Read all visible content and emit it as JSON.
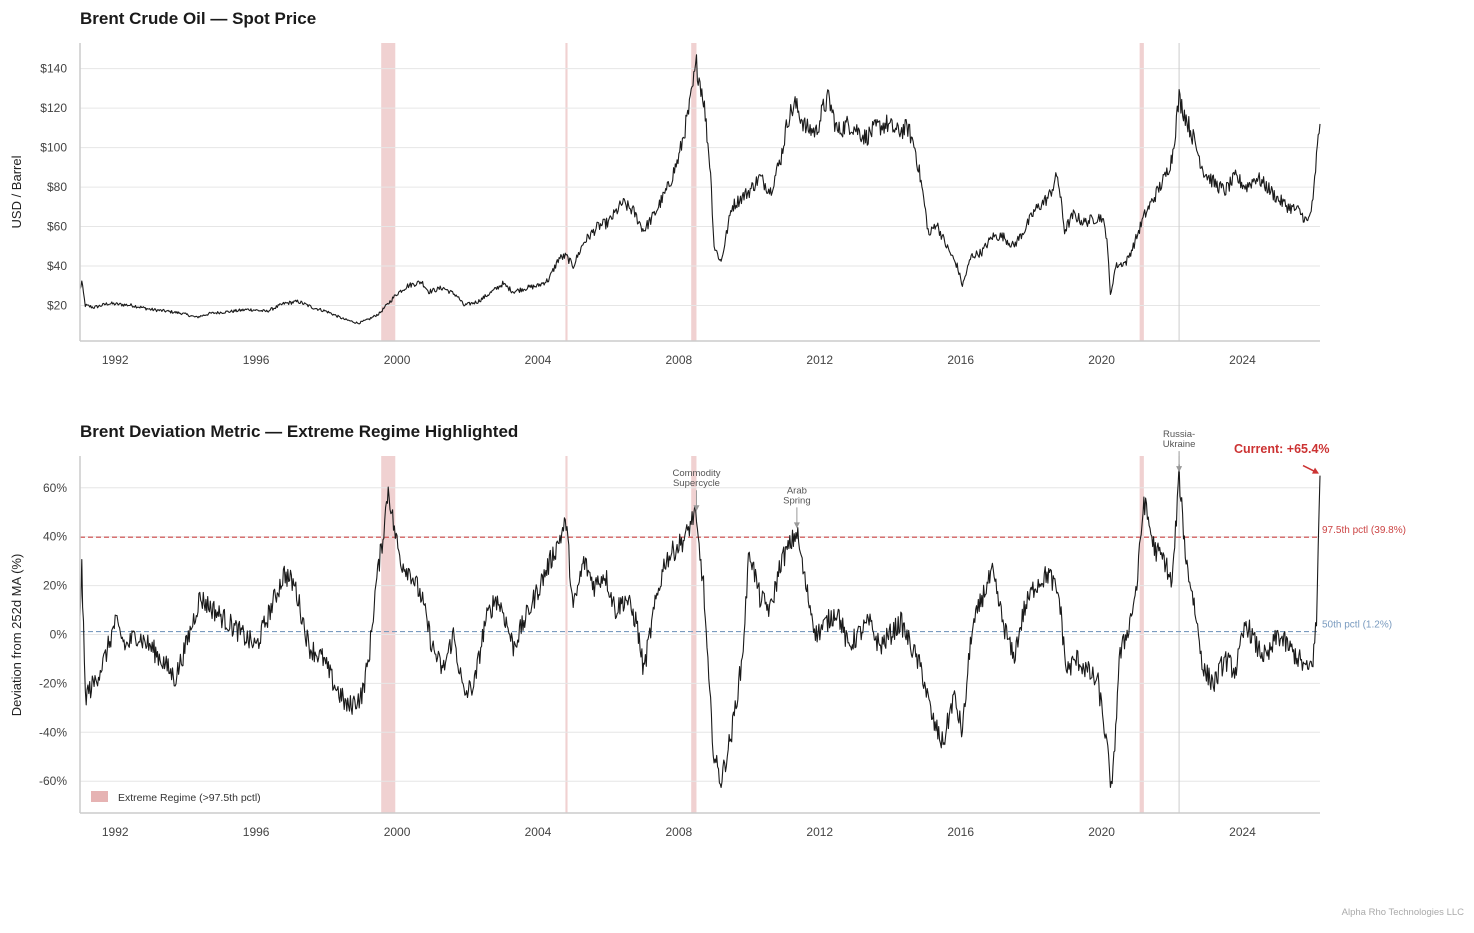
{
  "chart_data": [
    {
      "type": "line",
      "title": "Brent Crude Oil — Spot Price",
      "xlabel": "",
      "ylabel": "USD / Barrel",
      "xlim": [
        1991.0,
        2026.2
      ],
      "ylim": [
        2,
        153
      ],
      "x_ticks": [
        1992,
        1996,
        2000,
        2004,
        2008,
        2012,
        2016,
        2020,
        2024
      ],
      "y_ticks": [
        20,
        40,
        60,
        80,
        100,
        120,
        140
      ],
      "y_tick_labels": [
        "$20",
        "$40",
        "$60",
        "$80",
        "$100",
        "$120",
        "$140"
      ],
      "series": [
        {
          "name": "Brent Spot Price",
          "x": [
            1991.0,
            1991.05,
            1991.15,
            1991.4,
            1991.8,
            1992.5,
            1993.0,
            1993.5,
            1993.9,
            1994.3,
            1994.7,
            1995.3,
            1995.8,
            1996.3,
            1996.8,
            1997.2,
            1997.6,
            1998.0,
            1998.5,
            1998.9,
            1999.2,
            1999.5,
            1999.8,
            2000.0,
            2000.3,
            2000.7,
            2000.9,
            2001.3,
            2001.7,
            2001.9,
            2002.3,
            2002.7,
            2003.0,
            2003.3,
            2003.7,
            2004.0,
            2004.3,
            2004.6,
            2004.8,
            2005.0,
            2005.3,
            2005.7,
            2006.0,
            2006.4,
            2006.7,
            2007.0,
            2007.3,
            2007.7,
            2008.0,
            2008.3,
            2008.5,
            2008.7,
            2008.9,
            2009.0,
            2009.2,
            2009.5,
            2009.8,
            2010.0,
            2010.3,
            2010.6,
            2010.9,
            2011.1,
            2011.3,
            2011.6,
            2011.9,
            2012.1,
            2012.25,
            2012.5,
            2012.8,
            2013.0,
            2013.3,
            2013.6,
            2013.9,
            2014.2,
            2014.5,
            2014.7,
            2014.9,
            2015.1,
            2015.3,
            2015.6,
            2015.9,
            2016.05,
            2016.3,
            2016.6,
            2016.9,
            2017.2,
            2017.5,
            2017.8,
            2018.1,
            2018.5,
            2018.75,
            2018.95,
            2019.2,
            2019.5,
            2019.8,
            2020.0,
            2020.15,
            2020.25,
            2020.4,
            2020.7,
            2020.9,
            2021.2,
            2021.5,
            2021.8,
            2022.0,
            2022.2,
            2022.4,
            2022.6,
            2022.9,
            2023.2,
            2023.5,
            2023.8,
            2024.1,
            2024.4,
            2024.7,
            2025.0,
            2025.3,
            2025.6,
            2025.85,
            2026.0,
            2026.1,
            2026.2
          ],
          "values": [
            28,
            32,
            20,
            19,
            21,
            20,
            18,
            17,
            16,
            14,
            16,
            17,
            18,
            17,
            21,
            22,
            19,
            17,
            13,
            11,
            13,
            16,
            22,
            26,
            30,
            32,
            27,
            29,
            25,
            20,
            22,
            27,
            31,
            27,
            29,
            30,
            33,
            44,
            45,
            40,
            52,
            60,
            62,
            72,
            68,
            58,
            66,
            80,
            95,
            120,
            142,
            125,
            88,
            50,
            42,
            70,
            75,
            78,
            85,
            78,
            95,
            115,
            122,
            110,
            108,
            120,
            125,
            108,
            112,
            110,
            105,
            110,
            112,
            108,
            110,
            100,
            80,
            55,
            62,
            50,
            40,
            30,
            45,
            47,
            55,
            55,
            50,
            58,
            68,
            75,
            86,
            58,
            66,
            62,
            64,
            65,
            55,
            25,
            40,
            42,
            50,
            65,
            75,
            85,
            95,
            125,
            115,
            105,
            88,
            82,
            78,
            85,
            80,
            85,
            80,
            74,
            70,
            68,
            62,
            72,
            95,
            112
          ]
        }
      ],
      "shaded_regimes": [
        [
          1999.55,
          1999.95
        ],
        [
          2004.78,
          2004.84
        ],
        [
          2008.35,
          2008.5
        ],
        [
          2021.08,
          2021.2
        ]
      ],
      "vlines": [
        2022.2
      ]
    },
    {
      "type": "line",
      "title": "Brent Deviation Metric — Extreme Regime Highlighted",
      "xlabel": "",
      "ylabel": "Deviation from 252d MA (%)",
      "xlim": [
        1991.0,
        2026.2
      ],
      "ylim": [
        -73,
        73
      ],
      "x_ticks": [
        1992,
        1996,
        2000,
        2004,
        2008,
        2012,
        2016,
        2020,
        2024
      ],
      "y_ticks": [
        -60,
        -40,
        -20,
        0,
        20,
        40,
        60
      ],
      "y_tick_labels": [
        "-60%",
        "-40%",
        "-20%",
        "0%",
        "20%",
        "40%",
        "60%"
      ],
      "series": [
        {
          "name": "Deviation",
          "x": [
            1991.0,
            1991.05,
            1991.15,
            1991.4,
            1991.7,
            1992.0,
            1992.3,
            1992.6,
            1993.0,
            1993.3,
            1993.7,
            1994.0,
            1994.4,
            1994.8,
            1995.2,
            1995.6,
            1996.0,
            1996.4,
            1996.8,
            1997.1,
            1997.5,
            1997.9,
            1998.2,
            1998.6,
            1999.0,
            1999.2,
            1999.4,
            1999.6,
            1999.75,
            1999.9,
            2000.1,
            2000.4,
            2000.7,
            2001.0,
            2001.3,
            2001.6,
            2001.9,
            2002.2,
            2002.5,
            2002.8,
            2003.0,
            2003.3,
            2003.6,
            2003.9,
            2004.2,
            2004.5,
            2004.8,
            2005.0,
            2005.3,
            2005.6,
            2005.9,
            2006.2,
            2006.5,
            2006.8,
            2007.0,
            2007.3,
            2007.6,
            2007.9,
            2008.2,
            2008.45,
            2008.7,
            2008.85,
            2009.0,
            2009.2,
            2009.5,
            2009.8,
            2010.0,
            2010.3,
            2010.6,
            2010.9,
            2011.1,
            2011.35,
            2011.6,
            2011.9,
            2012.2,
            2012.5,
            2012.8,
            2013.1,
            2013.4,
            2013.7,
            2014.0,
            2014.3,
            2014.6,
            2014.9,
            2015.2,
            2015.5,
            2015.8,
            2016.05,
            2016.3,
            2016.6,
            2016.9,
            2017.2,
            2017.5,
            2017.8,
            2018.1,
            2018.5,
            2018.8,
            2019.0,
            2019.3,
            2019.6,
            2019.9,
            2020.1,
            2020.3,
            2020.5,
            2020.8,
            2021.0,
            2021.2,
            2021.5,
            2021.8,
            2022.0,
            2022.2,
            2022.4,
            2022.6,
            2022.9,
            2023.2,
            2023.5,
            2023.8,
            2024.1,
            2024.4,
            2024.7,
            2025.0,
            2025.3,
            2025.6,
            2025.85,
            2026.0,
            2026.1,
            2026.2
          ],
          "values": [
            10,
            27,
            -25,
            -20,
            -10,
            5,
            -5,
            0,
            -5,
            -10,
            -18,
            -5,
            15,
            10,
            5,
            0,
            -5,
            10,
            25,
            20,
            -5,
            -10,
            -20,
            -30,
            -25,
            -10,
            20,
            40,
            60,
            45,
            30,
            25,
            15,
            -5,
            -15,
            0,
            -25,
            -20,
            5,
            15,
            10,
            -5,
            5,
            15,
            25,
            35,
            46,
            10,
            30,
            20,
            25,
            10,
            15,
            5,
            -15,
            10,
            30,
            35,
            40,
            50,
            20,
            -20,
            -50,
            -60,
            -40,
            -10,
            35,
            15,
            10,
            30,
            35,
            42,
            20,
            0,
            5,
            10,
            -5,
            0,
            5,
            -5,
            0,
            5,
            -5,
            -15,
            -35,
            -45,
            -25,
            -40,
            0,
            15,
            25,
            5,
            -10,
            10,
            20,
            25,
            15,
            -15,
            -10,
            -15,
            -20,
            -40,
            -65,
            -10,
            5,
            20,
            55,
            35,
            30,
            20,
            65,
            30,
            15,
            -15,
            -20,
            -10,
            -15,
            5,
            -5,
            -10,
            0,
            -5,
            -10,
            -15,
            -10,
            5,
            65
          ]
        }
      ],
      "reference_lines": [
        {
          "label": "97.5th pctl (39.8%)",
          "value": 39.8,
          "color": "#cc4444",
          "style": "dashed"
        },
        {
          "label": "50th pctl (1.2%)",
          "value": 1.2,
          "color": "#7a9bbf",
          "style": "dashed"
        }
      ],
      "shaded_regimes": [
        [
          1999.55,
          1999.95
        ],
        [
          2004.78,
          2004.84
        ],
        [
          2008.35,
          2008.5
        ],
        [
          2021.08,
          2021.2
        ]
      ],
      "vlines": [
        2022.2
      ],
      "annotations": [
        {
          "text": [
            "Commodity",
            "Supercycle"
          ],
          "x": 2008.5,
          "y": 50
        },
        {
          "text": [
            "Arab",
            "Spring"
          ],
          "x": 2011.35,
          "y": 43
        },
        {
          "text": [
            "Russia-",
            "Ukraine"
          ],
          "x": 2022.2,
          "y": 66
        }
      ],
      "current_label": "Current: +65.4%",
      "current_value": 65.4,
      "legend": {
        "label": "Extreme Regime (>97.5th pctl)",
        "placement": "lower-left"
      }
    }
  ],
  "footer": {
    "credit": "Alpha Rho Technologies LLC"
  },
  "colors": {
    "line": "#1a1a1a",
    "regime": "#dd9a9a",
    "accent_red": "#cc3333",
    "median_blue": "#7a9bbf",
    "grid": "#e6e6e6"
  }
}
